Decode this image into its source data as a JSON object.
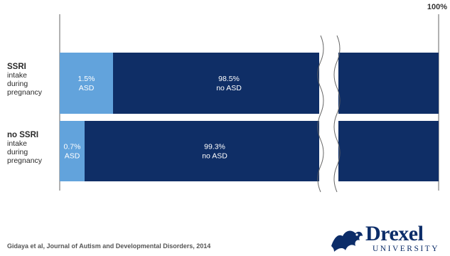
{
  "chart_data": {
    "type": "bar",
    "orientation": "horizontal",
    "stacked": true,
    "axis_break": true,
    "xlim": [
      0,
      100
    ],
    "max_label": "100%",
    "categories": [
      {
        "label": "SSRI",
        "sublabel": "intake\nduring\npregnancy"
      },
      {
        "label": "no SSRI",
        "sublabel": "intake\nduring\npregnancy"
      }
    ],
    "series": [
      {
        "name": "ASD",
        "values": [
          1.5,
          0.7
        ],
        "labels": [
          "1.5%",
          "0.7%"
        ],
        "sublabel": "ASD"
      },
      {
        "name": "no ASD",
        "values": [
          98.5,
          99.3
        ],
        "labels": [
          "98.5%",
          "99.3%"
        ],
        "sublabel": "no ASD"
      }
    ],
    "colors": {
      "asd": "#62a3dc",
      "no_asd": "#0f2e66",
      "gridline": "#666666"
    }
  },
  "source": "Gidaya et al, Journal of Autism and Developmental Disorders, 2014",
  "logo": {
    "name": "drexel-logo",
    "word": "Drexel",
    "sub": "UNIVERSITY",
    "color": "#0c2d69"
  }
}
